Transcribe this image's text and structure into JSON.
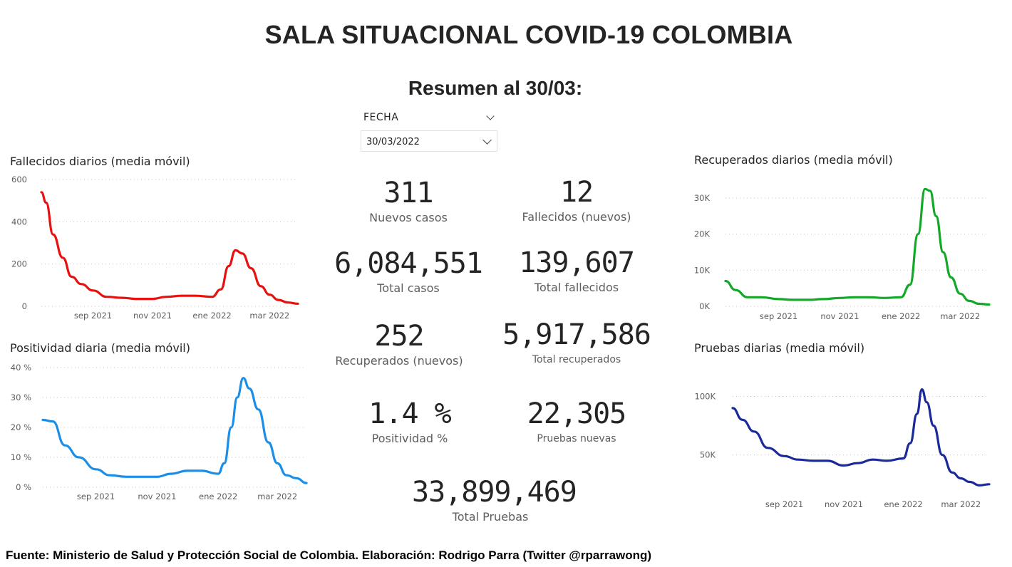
{
  "title": "SALA SITUACIONAL COVID-19 COLOMBIA",
  "subtitle": "Resumen al 30/03:",
  "filter": {
    "label": "FECHA",
    "selected": "30/03/2022"
  },
  "kpis": {
    "nuevos_casos": {
      "value": "311",
      "label": "Nuevos casos"
    },
    "fallecidos_nuevos": {
      "value": "12",
      "label": "Fallecidos (nuevos)"
    },
    "total_casos": {
      "value": "6,084,551",
      "label": "Total casos"
    },
    "total_fallecidos": {
      "value": "139,607",
      "label": "Total fallecidos"
    },
    "recuperados_nuevos": {
      "value": "252",
      "label": "Recuperados (nuevos)"
    },
    "total_recuperados": {
      "value": "5,917,586",
      "label": "Total recuperados"
    },
    "positividad": {
      "value": "1.4 %",
      "label": "Positividad %"
    },
    "pruebas_nuevas": {
      "value": "22,305",
      "label": "Pruebas nuevas"
    },
    "total_pruebas": {
      "value": "33,899,469",
      "label": "Total Pruebas"
    }
  },
  "footer": "Fuente: Ministerio de Salud y Protección Social de Colombia. Elaboración: Rodrigo Parra (Twitter @rparrawong)",
  "chart_data": [
    {
      "id": "fallecidos",
      "type": "line",
      "title": "Fallecidos diarios (media móvil)",
      "color": "#e8110f",
      "x_ticks": [
        "sep 2021",
        "nov 2021",
        "ene 2022",
        "mar 2022"
      ],
      "y_ticks": [
        "0",
        "200",
        "400",
        "600"
      ],
      "ylim": [
        0,
        600
      ],
      "grid": true,
      "x": [
        "2021-07-10",
        "2021-07-15",
        "2021-07-22",
        "2021-08-01",
        "2021-08-10",
        "2021-08-20",
        "2021-09-01",
        "2021-09-15",
        "2021-10-01",
        "2021-10-15",
        "2021-11-01",
        "2021-11-15",
        "2021-12-01",
        "2021-12-15",
        "2022-01-01",
        "2022-01-10",
        "2022-01-18",
        "2022-01-25",
        "2022-02-01",
        "2022-02-10",
        "2022-02-20",
        "2022-03-01",
        "2022-03-10",
        "2022-03-20",
        "2022-03-30"
      ],
      "values": [
        540,
        490,
        340,
        230,
        140,
        105,
        75,
        45,
        40,
        35,
        35,
        45,
        50,
        50,
        45,
        80,
        190,
        265,
        250,
        180,
        95,
        55,
        30,
        18,
        12
      ]
    },
    {
      "id": "positividad",
      "type": "line",
      "title": "Positividad diaria (media móvil)",
      "color": "#1b8fe8",
      "x_ticks": [
        "sep 2021",
        "nov 2021",
        "ene 2022",
        "mar 2022"
      ],
      "y_ticks": [
        "0 %",
        "10 %",
        "20 %",
        "30 %",
        "40 %"
      ],
      "ylim": [
        0,
        40
      ],
      "grid": true,
      "x": [
        "2021-07-10",
        "2021-07-20",
        "2021-08-01",
        "2021-08-15",
        "2021-09-01",
        "2021-09-15",
        "2021-10-01",
        "2021-10-15",
        "2021-11-01",
        "2021-11-15",
        "2021-12-01",
        "2021-12-15",
        "2022-01-01",
        "2022-01-07",
        "2022-01-14",
        "2022-01-20",
        "2022-01-26",
        "2022-02-01",
        "2022-02-10",
        "2022-02-20",
        "2022-03-01",
        "2022-03-10",
        "2022-03-20",
        "2022-03-30"
      ],
      "values": [
        22.5,
        22,
        14,
        10,
        6,
        4,
        3.5,
        3.5,
        3.5,
        4.5,
        5.5,
        5.5,
        4.5,
        8,
        20,
        30,
        36.5,
        33,
        26,
        15,
        8,
        4,
        3,
        1.4
      ]
    },
    {
      "id": "recuperados",
      "type": "line",
      "title": "Recuperados diarios (media móvil)",
      "color": "#14a828",
      "x_ticks": [
        "sep 2021",
        "nov 2021",
        "ene 2022",
        "mar 2022"
      ],
      "y_ticks": [
        "0K",
        "10K",
        "20K",
        "30K"
      ],
      "ylim": [
        0,
        30000
      ],
      "grid": true,
      "x": [
        "2021-07-10",
        "2021-07-20",
        "2021-08-01",
        "2021-08-15",
        "2021-09-01",
        "2021-09-15",
        "2021-10-01",
        "2021-10-15",
        "2021-11-01",
        "2021-11-15",
        "2021-12-01",
        "2021-12-15",
        "2022-01-01",
        "2022-01-10",
        "2022-01-18",
        "2022-01-25",
        "2022-01-30",
        "2022-02-05",
        "2022-02-12",
        "2022-02-20",
        "2022-03-01",
        "2022-03-10",
        "2022-03-20",
        "2022-03-30"
      ],
      "values": [
        7000,
        4500,
        2500,
        2500,
        2000,
        1800,
        1800,
        2000,
        2300,
        2500,
        2500,
        2300,
        2500,
        6000,
        20000,
        32500,
        32000,
        25000,
        15000,
        8000,
        3500,
        1500,
        700,
        500
      ]
    },
    {
      "id": "pruebas",
      "type": "line",
      "title": "Pruebas diarias (media móvil)",
      "color": "#1a2a9a",
      "x_ticks": [
        "sep 2021",
        "nov 2021",
        "ene 2022",
        "mar 2022"
      ],
      "y_ticks": [
        "50K",
        "100K"
      ],
      "ylim": [
        20000,
        110000
      ],
      "grid": true,
      "x": [
        "2021-07-10",
        "2021-07-20",
        "2021-08-01",
        "2021-08-15",
        "2021-09-01",
        "2021-09-15",
        "2021-10-01",
        "2021-10-15",
        "2021-11-01",
        "2021-11-15",
        "2021-12-01",
        "2021-12-15",
        "2022-01-01",
        "2022-01-08",
        "2022-01-15",
        "2022-01-20",
        "2022-01-25",
        "2022-02-01",
        "2022-02-10",
        "2022-02-20",
        "2022-03-01",
        "2022-03-10",
        "2022-03-20",
        "2022-03-30"
      ],
      "values": [
        90000,
        80000,
        70000,
        56000,
        49000,
        46000,
        45000,
        45000,
        41000,
        43000,
        46000,
        45000,
        47000,
        60000,
        85000,
        106000,
        95000,
        75000,
        50000,
        35000,
        30000,
        27000,
        24000,
        25000
      ]
    }
  ]
}
